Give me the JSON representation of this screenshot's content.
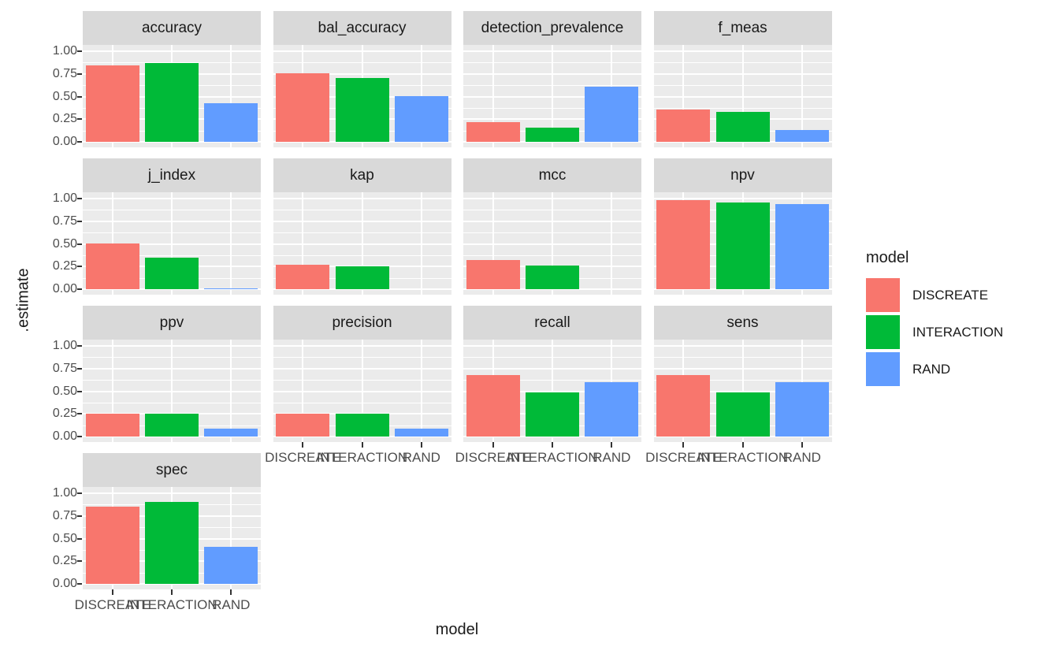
{
  "figure": {
    "background": "#FFFFFF",
    "panel_bg": "#EBEBEB",
    "strip_bg": "#D9D9D9",
    "grid_color": "#FFFFFF",
    "tick_color": "#333333",
    "axis_text_color": "#4D4D4D",
    "title_color": "#1A1A1A"
  },
  "chart_data": {
    "type": "bar",
    "faceted": true,
    "title": "",
    "xlabel": "model",
    "ylabel": ".estimate",
    "ylim": [
      0,
      1
    ],
    "grid": true,
    "legend_position": "right",
    "categories": [
      "DISCREATE",
      "INTERACTION",
      "RAND"
    ],
    "series_colors": [
      "#F8766D",
      "#00BA38",
      "#619CFF"
    ],
    "yticks": [
      {
        "label": "0.00",
        "value": 0
      },
      {
        "label": "0.25",
        "value": 0.25
      },
      {
        "label": "0.50",
        "value": 0.5
      },
      {
        "label": "0.75",
        "value": 0.75
      },
      {
        "label": "1.00",
        "value": 1
      }
    ],
    "y_minor_breaks": [
      0.125,
      0.375,
      0.625,
      0.875
    ],
    "facets": [
      {
        "label": "accuracy",
        "values": [
          0.84,
          0.87,
          0.43
        ]
      },
      {
        "label": "bal_accuracy",
        "values": [
          0.76,
          0.7,
          0.5
        ]
      },
      {
        "label": "detection_prevalence",
        "values": [
          0.22,
          0.16,
          0.61
        ]
      },
      {
        "label": "f_meas",
        "values": [
          0.36,
          0.33,
          0.13
        ]
      },
      {
        "label": "j_index",
        "values": [
          0.5,
          0.35,
          0.005
        ]
      },
      {
        "label": "kap",
        "values": [
          0.27,
          0.25,
          0.0
        ]
      },
      {
        "label": "mcc",
        "values": [
          0.32,
          0.26,
          0.0
        ]
      },
      {
        "label": "npv",
        "values": [
          0.98,
          0.96,
          0.94
        ]
      },
      {
        "label": "ppv",
        "values": [
          0.25,
          0.25,
          0.09
        ]
      },
      {
        "label": "precision",
        "values": [
          0.25,
          0.25,
          0.09
        ]
      },
      {
        "label": "recall",
        "values": [
          0.68,
          0.49,
          0.6
        ]
      },
      {
        "label": "sens",
        "values": [
          0.68,
          0.49,
          0.6
        ]
      },
      {
        "label": "spec",
        "values": [
          0.85,
          0.9,
          0.41
        ]
      }
    ],
    "legend": {
      "title": "model",
      "entries": [
        {
          "label": "DISCREATE",
          "color": "#F8766D"
        },
        {
          "label": "INTERACTION",
          "color": "#00BA38"
        },
        {
          "label": "RAND",
          "color": "#619CFF"
        }
      ]
    }
  }
}
